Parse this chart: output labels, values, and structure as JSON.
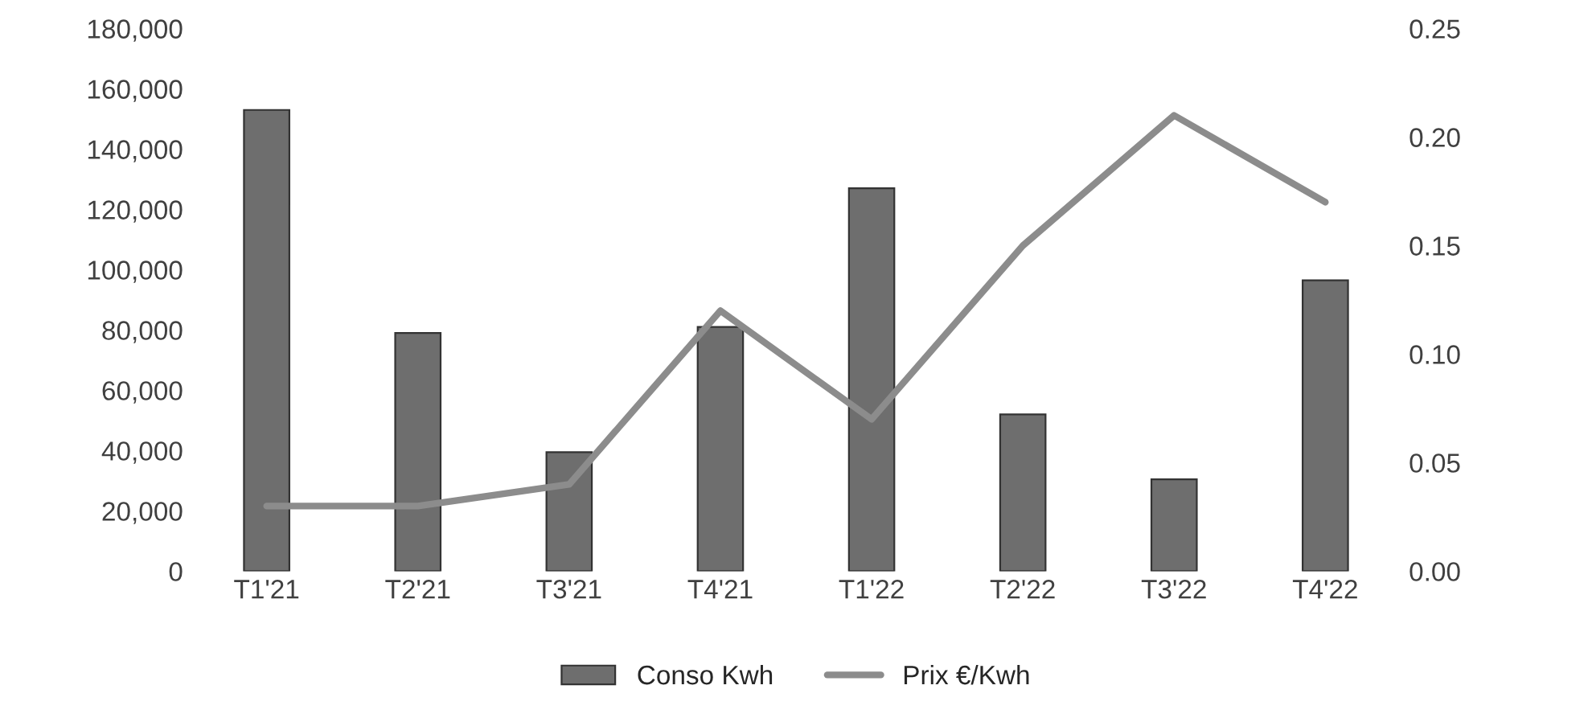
{
  "chart_data": {
    "type": "bar",
    "categories": [
      "T1'21",
      "T2'21",
      "T3'21",
      "T4'21",
      "T1'22",
      "T2'22",
      "T3'22",
      "T4'22"
    ],
    "series": [
      {
        "name": "Conso Kwh",
        "color": "#6e6e6e",
        "values": [
          153000,
          79000,
          39500,
          81000,
          127000,
          52000,
          30500,
          96500
        ]
      },
      {
        "name": "Prix €/Kwh",
        "type": "line",
        "axis": "y2",
        "color": "#8c8c8c",
        "values": [
          0.03,
          0.03,
          0.04,
          0.12,
          0.07,
          0.15,
          0.21,
          0.17
        ]
      }
    ],
    "ylim": [
      0,
      180000
    ],
    "yticks": [
      {
        "value": 0,
        "label": "0"
      },
      {
        "value": 20000,
        "label": "20,000"
      },
      {
        "value": 40000,
        "label": "40,000"
      },
      {
        "value": 60000,
        "label": "60,000"
      },
      {
        "value": 80000,
        "label": "80,000"
      },
      {
        "value": 100000,
        "label": "100,000"
      },
      {
        "value": 120000,
        "label": "120,000"
      },
      {
        "value": 140000,
        "label": "140,000"
      },
      {
        "value": 160000,
        "label": "160,000"
      },
      {
        "value": 180000,
        "label": "180,000"
      }
    ],
    "y2lim": [
      0,
      0.25
    ],
    "y2ticks": [
      {
        "value": 0,
        "label": "0.00"
      },
      {
        "value": 0.05,
        "label": "0.05"
      },
      {
        "value": 0.1,
        "label": "0.10"
      },
      {
        "value": 0.15,
        "label": "0.15"
      },
      {
        "value": 0.2,
        "label": "0.20"
      },
      {
        "value": 0.25,
        "label": "0.25"
      }
    ],
    "legend": "bottom",
    "grid": false
  }
}
